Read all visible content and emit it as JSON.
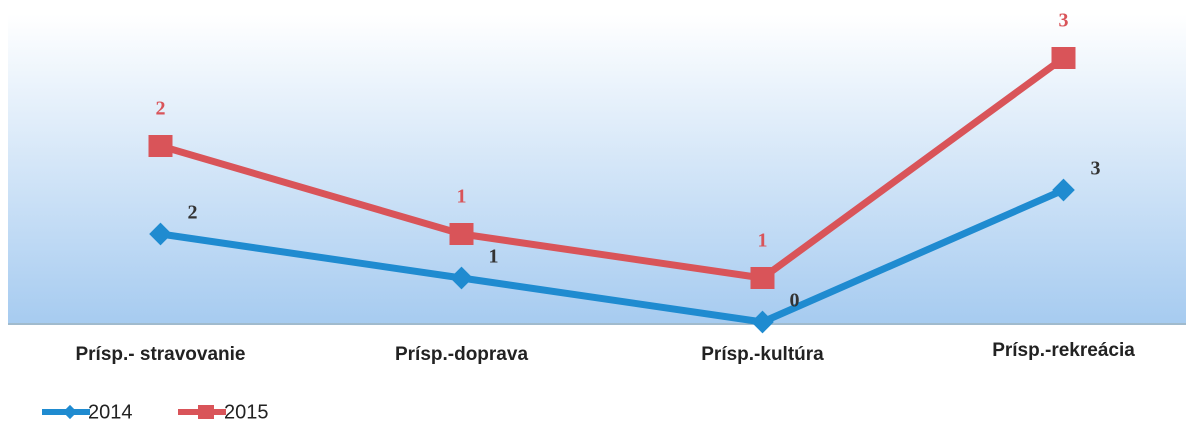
{
  "chart_data": {
    "type": "line",
    "stacked": true,
    "categories": [
      "Prísp.- stravovanie",
      "Prísp.-doprava",
      "Prísp.-kultúra",
      "Prísp.-rekreácia"
    ],
    "series": [
      {
        "name": "2014",
        "color": "#1f8bd0",
        "values": [
          2,
          1,
          0,
          3
        ]
      },
      {
        "name": "2015",
        "color": "#d95459",
        "values": [
          2,
          1,
          1,
          3
        ]
      }
    ],
    "ylim": [
      0,
      7
    ]
  }
}
